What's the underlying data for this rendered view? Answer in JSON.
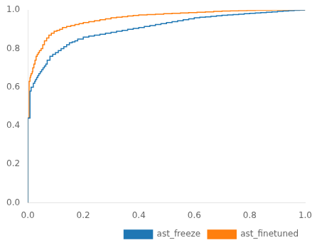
{
  "chart_data": {
    "type": "step",
    "series": [
      {
        "name": "ast_freeze",
        "color": "#1f77b4",
        "x": [
          0.0,
          0.008,
          0.008,
          0.012,
          0.016,
          0.02,
          0.02,
          0.025,
          0.028,
          0.032,
          0.036,
          0.04,
          0.045,
          0.05,
          0.055,
          0.06,
          0.065,
          0.07,
          0.08,
          0.09,
          0.1,
          0.11,
          0.12,
          0.13,
          0.14,
          0.15,
          0.16,
          0.17,
          0.18,
          0.2,
          0.22,
          0.24,
          0.26,
          0.28,
          0.3,
          0.32,
          0.34,
          0.36,
          0.38,
          0.4,
          0.42,
          0.44,
          0.46,
          0.48,
          0.5,
          0.52,
          0.54,
          0.56,
          0.58,
          0.6,
          0.62,
          0.64,
          0.66,
          0.68,
          0.7,
          0.72,
          0.74,
          0.76,
          0.78,
          0.8,
          0.82,
          0.84,
          0.86,
          0.88,
          0.9,
          0.92,
          0.94,
          0.96,
          0.98,
          1.0
        ],
        "values": [
          0.0,
          0.44,
          0.58,
          0.58,
          0.6,
          0.6,
          0.61,
          0.62,
          0.63,
          0.64,
          0.65,
          0.66,
          0.67,
          0.68,
          0.69,
          0.7,
          0.71,
          0.72,
          0.74,
          0.76,
          0.77,
          0.78,
          0.79,
          0.8,
          0.81,
          0.82,
          0.83,
          0.835,
          0.84,
          0.85,
          0.86,
          0.865,
          0.87,
          0.875,
          0.88,
          0.885,
          0.89,
          0.895,
          0.9,
          0.905,
          0.91,
          0.915,
          0.92,
          0.925,
          0.93,
          0.935,
          0.94,
          0.945,
          0.95,
          0.955,
          0.96,
          0.963,
          0.965,
          0.968,
          0.97,
          0.973,
          0.975,
          0.977,
          0.979,
          0.981,
          0.983,
          0.985,
          0.987,
          0.989,
          0.991,
          0.993,
          0.995,
          0.997,
          0.999,
          1.0
        ]
      },
      {
        "name": "ast_finetuned",
        "color": "#ff7f0e",
        "x": [
          0.0,
          0.0,
          0.005,
          0.008,
          0.01,
          0.012,
          0.016,
          0.018,
          0.022,
          0.026,
          0.03,
          0.034,
          0.038,
          0.042,
          0.048,
          0.054,
          0.06,
          0.068,
          0.076,
          0.085,
          0.095,
          0.105,
          0.115,
          0.125,
          0.14,
          0.155,
          0.17,
          0.185,
          0.2,
          0.22,
          0.24,
          0.26,
          0.28,
          0.3,
          0.32,
          0.34,
          0.36,
          0.38,
          0.4,
          0.43,
          0.46,
          0.49,
          0.52,
          0.55,
          0.58,
          0.61,
          0.64,
          0.67,
          0.7,
          0.73,
          0.76,
          0.79,
          0.82,
          0.85,
          0.88,
          0.91,
          0.94,
          0.97,
          1.0
        ],
        "values": [
          0.0,
          0.44,
          0.44,
          0.63,
          0.65,
          0.66,
          0.67,
          0.68,
          0.7,
          0.72,
          0.74,
          0.76,
          0.77,
          0.78,
          0.79,
          0.8,
          0.82,
          0.84,
          0.855,
          0.87,
          0.88,
          0.89,
          0.895,
          0.9,
          0.91,
          0.915,
          0.92,
          0.925,
          0.93,
          0.935,
          0.94,
          0.945,
          0.95,
          0.955,
          0.96,
          0.963,
          0.966,
          0.969,
          0.972,
          0.975,
          0.977,
          0.979,
          0.981,
          0.983,
          0.985,
          0.987,
          0.989,
          0.991,
          0.993,
          0.995,
          0.996,
          0.997,
          0.998,
          0.999,
          0.999,
          1.0,
          1.0,
          1.0,
          1.0
        ]
      }
    ],
    "xlim": [
      0.0,
      1.0
    ],
    "ylim": [
      0.0,
      1.0
    ],
    "xticks": [
      {
        "value": 0,
        "label": "0.0"
      },
      0.2,
      0.4,
      0.6,
      0.8,
      {
        "value": 1,
        "label": "1.0"
      }
    ],
    "yticks": [
      {
        "value": 0,
        "label": "0.0"
      },
      0.2,
      0.4,
      0.6,
      0.8,
      {
        "value": 1,
        "label": "1.0"
      }
    ],
    "grid": false,
    "legend": "lower right"
  }
}
